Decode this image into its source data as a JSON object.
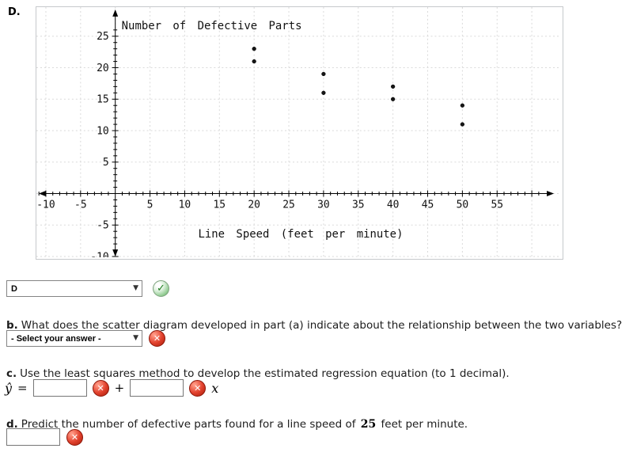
{
  "page": {
    "part_label": "D."
  },
  "chart_data": {
    "type": "scatter",
    "title": "Number of Defective Parts",
    "xlabel": "Line Speed (feet per minute)",
    "ylabel": "",
    "points": {
      "x": [
        20,
        20,
        30,
        30,
        40,
        40,
        50,
        50
      ],
      "y": [
        23,
        21,
        19,
        16,
        17,
        15,
        14,
        11
      ]
    },
    "xticks": [
      -10,
      -5,
      5,
      10,
      15,
      20,
      25,
      30,
      35,
      40,
      45,
      50,
      55
    ],
    "yticks": [
      -10,
      -5,
      5,
      10,
      15,
      20,
      25
    ],
    "xlim": [
      -11.5,
      64
    ],
    "ylim": [
      -10.1,
      29.5
    ],
    "grid": true,
    "grid_step": 5,
    "legend": "none"
  },
  "icons": {
    "check": "✓",
    "cross": "✕",
    "dropdown_arrow": "▼"
  },
  "colors": {
    "correct_green": "#2e8b2e",
    "incorrect_red": "#c1260e"
  },
  "part_a": {
    "dropdown_value": "D"
  },
  "part_b": {
    "label": "b.",
    "question": "What does the scatter diagram developed in part (a) indicate about the relationship between the two variables?",
    "dropdown_value": "- Select your answer -"
  },
  "part_c": {
    "label": "c.",
    "question": "Use the least squares method to develop the estimated regression equation (to 1 decimal).",
    "equation": {
      "yhat": "ŷ",
      "equals": "=",
      "plus": "+",
      "x": "x",
      "intercept_value": "",
      "slope_value": ""
    }
  },
  "part_d": {
    "label": "d.",
    "question_before": "Predict the number of defective parts found for a line speed of ",
    "speed_value": "25",
    "question_after": " feet per minute.",
    "answer_value": ""
  }
}
